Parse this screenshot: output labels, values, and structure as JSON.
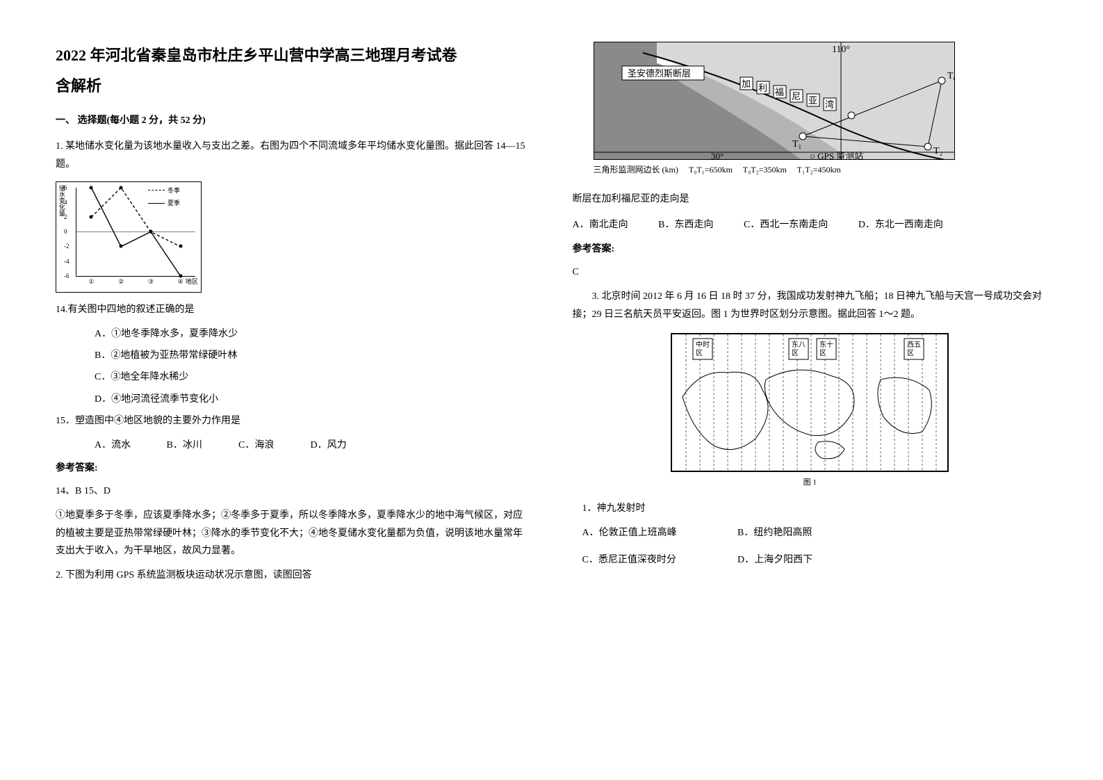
{
  "doc": {
    "title_line1": "2022 年河北省秦皇岛市杜庄乡平山营中学高三地理月考试卷",
    "title_line2": "含解析",
    "section1": "一、 选择题(每小题 2 分，共 52 分)",
    "q1_intro": "1. 某地储水变化量为该地水量收入与支出之差。右图为四个不同流域多年平均储水变化量图。据此回答 14—15 题。",
    "chart1": {
      "type": "line",
      "ylabel": "储水变化量",
      "yticks": [
        "6",
        "4",
        "2",
        "0",
        "-2",
        "-4",
        "-6"
      ],
      "ylim": [
        -6,
        6
      ],
      "xticks": [
        "①",
        "②",
        "③",
        "④"
      ],
      "xlabel_end": "地区",
      "legend": [
        "冬季",
        "夏季"
      ],
      "legend_styles": [
        "dashed",
        "solid"
      ],
      "winter_values": [
        2,
        6,
        0,
        -2
      ],
      "summer_values": [
        6,
        -2,
        0,
        -6
      ],
      "line_color": "#000000",
      "background_color": "#ffffff"
    },
    "q14": "14.有关图中四地的叙述正确的是",
    "q14_opts": {
      "A": "A．①地冬季降水多，夏季降水少",
      "B": "B．②地植被为亚热带常绿硬叶林",
      "C": "C．③地全年降水稀少",
      "D": "D．④地河流径流季节变化小"
    },
    "q15": "15．塑造图中④地区地貌的主要外力作用是",
    "q15_opts": {
      "A": "A．流水",
      "B": "B．冰川",
      "C": "C．海浪",
      "D": "D．风力"
    },
    "answer_head": "参考答案:",
    "ans_14_15": "14、B 15、D",
    "explain_1": "①地夏季多于冬季，应该夏季降水多；②冬季多于夏季，所以冬季降水多，夏季降水少的地中海气候区，对应的植被主要是亚热带常绿硬叶林；③降水的季节变化不大；④地冬夏储水变化量都为负值，说明该地水量常年支出大于收入，为干旱地区，故风力显著。",
    "q2_intro": "2. 下图为利用 GPS 系统监测板块运动状况示意图，读图回答",
    "map": {
      "longitude_label": "110°",
      "fault_label": "圣安德烈斯断层",
      "bay_label": "加利福尼亚湾",
      "gps_label": "○ GPS 监测站",
      "lat_label": "30°",
      "t_labels": [
        "T₀",
        "T₁",
        "T₂"
      ],
      "caption_left": "三角形监测网边长 (km)",
      "edges": [
        "T₀T₁=650km",
        "T₀T₂=350km",
        "T₁T₂=450km"
      ],
      "sea_color": "#8a8a8a",
      "land_color": "#d8d8d8",
      "bg": "#ffffff"
    },
    "q2_stem": "断层在加利福尼亚的走向是",
    "q2_opts": {
      "A": "A．南北走向",
      "B": "B．东西走向",
      "C": "C．西北一东南走向",
      "D": "D．东北一西南走向"
    },
    "ans2": "C",
    "q3_intro": "3. 北京时间 2012 年 6 月 16 日 18 时 37 分，我国成功发射神九飞船；18 日神九飞船与天宫一号成功交会对接；29 日三名航天员平安返回。图 1 为世界时区划分示意图。据此回答 1～2 题。",
    "tz": {
      "labels_top": [
        "中时区",
        "东八区",
        "东十区",
        "西五区"
      ],
      "caption": "图 1",
      "dotted_color": "#5a6a7a",
      "outline_color": "#000000"
    },
    "q3_1": "1．神九发射时",
    "q3_1_opts": {
      "A": "A．伦敦正值上班高峰",
      "B": "B．纽约艳阳高照",
      "C": "C．悉尼正值深夜时分",
      "D": "D．上海夕阳西下"
    }
  }
}
